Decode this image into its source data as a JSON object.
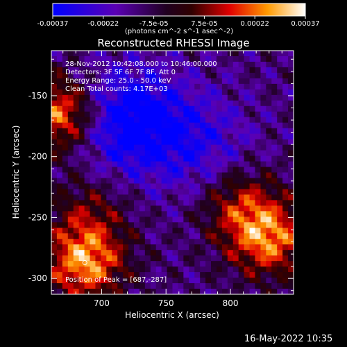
{
  "chart_data": {
    "type": "heatmap",
    "title": "Reconstructed RHESSI Image",
    "xlabel": "Heliocentric X (arcsec)",
    "ylabel": "Heliocentric Y (arcsec)",
    "xlim": [
      661,
      849
    ],
    "ylim": [
      -313,
      -113
    ],
    "xticks": [
      700,
      750,
      800
    ],
    "yticks": [
      -150,
      -200,
      -250,
      -300
    ],
    "colorbar": {
      "range": [
        -0.00037,
        0.00037
      ],
      "tick_labels": [
        "-0.00037",
        "-0.00022",
        "-7.5e-05",
        "7.5e-05",
        "0.00022",
        "0.00037"
      ],
      "units": "(photons cm^-2 s^-1 asec^-2)",
      "colormap": "blue-purple-red-orange-yellow-white"
    },
    "info": {
      "time_range": "28-Nov-2012 10:42:08.000 to 10:46:00.000",
      "detectors": "Detectors: 3F 5F 6F 7F 8F, Att 0",
      "energy_range": "Energy Range: 25.0 - 50.0 keV",
      "method_counts": "Clean    Total counts: 4.17E+03",
      "peak": "Position of Peak = [687,-287]"
    },
    "peak": [
      687,
      -287
    ],
    "bright_regions": [
      {
        "x": 668,
        "y": -165,
        "intensity": 0.00037
      },
      {
        "x": 830,
        "y": -268,
        "intensity": 0.00033
      },
      {
        "x": 687,
        "y": -287,
        "intensity": 0.00037
      },
      {
        "x": 808,
        "y": -240,
        "intensity": 0.00022
      },
      {
        "x": 690,
        "y": -245,
        "intensity": 0.00015
      }
    ],
    "dim_regions": [
      {
        "x": 720,
        "y": -170,
        "intensity": -0.0003
      },
      {
        "x": 775,
        "y": -190,
        "intensity": -0.00015
      }
    ]
  },
  "timestamp": "16-May-2022 10:35"
}
